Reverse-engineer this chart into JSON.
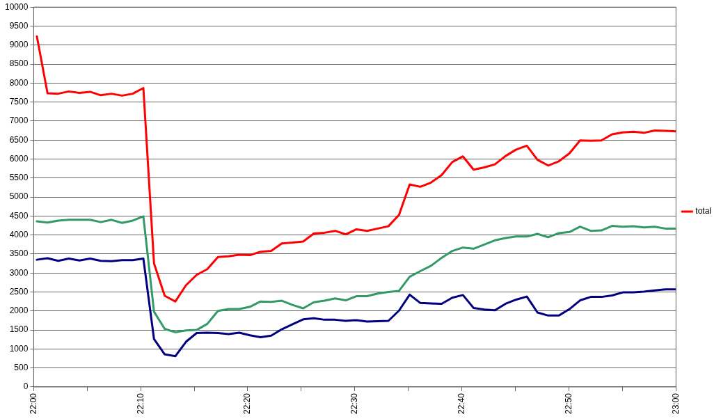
{
  "chart_data": {
    "type": "line",
    "xlim": [
      22,
      23
    ],
    "xticks": [
      {
        "value": 22,
        "label": "22:00"
      },
      {
        "value": 22.0833,
        "label": null
      },
      {
        "value": 22.1667,
        "label": "22:10"
      },
      {
        "value": 22.25,
        "label": null
      },
      {
        "value": 22.3333,
        "label": "22:20"
      },
      {
        "value": 22.4167,
        "label": null
      },
      {
        "value": 22.5,
        "label": "22:30"
      },
      {
        "value": 22.5833,
        "label": null
      },
      {
        "value": 22.6667,
        "label": "22:40"
      },
      {
        "value": 22.75,
        "label": null
      },
      {
        "value": 22.8333,
        "label": "22:50"
      },
      {
        "value": 22.9167,
        "label": null
      },
      {
        "value": 23,
        "label": "23:00"
      }
    ],
    "ylim": [
      0,
      10000
    ],
    "yticks": [
      0,
      500,
      1000,
      1500,
      2000,
      2500,
      3000,
      3500,
      4000,
      4500,
      5000,
      5500,
      6000,
      6500,
      7000,
      7500,
      8000,
      8500,
      9000,
      9500,
      10000
    ],
    "grid": "y",
    "legend": "right",
    "marker": "none",
    "line_style": "solid",
    "x": [
      22.005,
      22.0216,
      22.0382,
      22.0547,
      22.0713,
      22.0879,
      22.1045,
      22.1211,
      22.1377,
      22.1542,
      22.1708,
      22.1874,
      22.204,
      22.2206,
      22.2372,
      22.2537,
      22.2703,
      22.2869,
      22.3035,
      22.3201,
      22.3367,
      22.3532,
      22.3698,
      22.3864,
      22.403,
      22.4196,
      22.4362,
      22.4527,
      22.4693,
      22.4859,
      22.5025,
      22.5191,
      22.5357,
      22.5522,
      22.5688,
      22.5854,
      22.602,
      22.6186,
      22.6352,
      22.6517,
      22.6683,
      22.6849,
      22.7015,
      22.7181,
      22.7347,
      22.7512,
      22.7678,
      22.7844,
      22.801,
      22.8176,
      22.8342,
      22.8507,
      22.8673,
      22.8839,
      22.9005,
      22.9171,
      22.9337,
      22.9502,
      22.9668,
      22.9834,
      23.0
    ],
    "series": [
      {
        "color": "#000080",
        "values": [
          3350,
          3390,
          3320,
          3380,
          3330,
          3380,
          3320,
          3310,
          3340,
          3340,
          3380,
          1260,
          860,
          810,
          1190,
          1420,
          1430,
          1420,
          1390,
          1430,
          1360,
          1310,
          1350,
          1520,
          1650,
          1780,
          1810,
          1770,
          1770,
          1740,
          1760,
          1720,
          1730,
          1740,
          2010,
          2430,
          2210,
          2200,
          2190,
          2350,
          2420,
          2080,
          2040,
          2020,
          2190,
          2300,
          2380,
          1960,
          1880,
          1880,
          2050,
          2280,
          2370,
          2370,
          2410,
          2490,
          2490,
          2510,
          2540,
          2570,
          2570
        ]
      },
      {
        "color": "#339966",
        "values": [
          4360,
          4330,
          4380,
          4400,
          4400,
          4400,
          4340,
          4400,
          4320,
          4380,
          4490,
          1980,
          1530,
          1440,
          1490,
          1500,
          1660,
          2000,
          2050,
          2050,
          2110,
          2250,
          2240,
          2270,
          2160,
          2070,
          2230,
          2270,
          2330,
          2280,
          2390,
          2390,
          2460,
          2500,
          2530,
          2900,
          3050,
          3190,
          3400,
          3580,
          3670,
          3640,
          3750,
          3860,
          3920,
          3960,
          3960,
          4030,
          3940,
          4050,
          4080,
          4220,
          4110,
          4120,
          4240,
          4220,
          4230,
          4200,
          4220,
          4170,
          4170
        ]
      },
      {
        "name": "total",
        "color": "#ff0000",
        "values": [
          9230,
          7730,
          7720,
          7780,
          7740,
          7770,
          7680,
          7720,
          7670,
          7720,
          7870,
          3250,
          2400,
          2250,
          2680,
          2950,
          3100,
          3420,
          3440,
          3480,
          3470,
          3560,
          3580,
          3780,
          3800,
          3830,
          4040,
          4060,
          4110,
          4020,
          4150,
          4110,
          4170,
          4230,
          4530,
          5330,
          5270,
          5380,
          5580,
          5920,
          6070,
          5720,
          5780,
          5860,
          6080,
          6250,
          6350,
          5980,
          5830,
          5940,
          6150,
          6490,
          6480,
          6490,
          6650,
          6700,
          6720,
          6690,
          6750,
          6740,
          6730
        ]
      }
    ]
  }
}
